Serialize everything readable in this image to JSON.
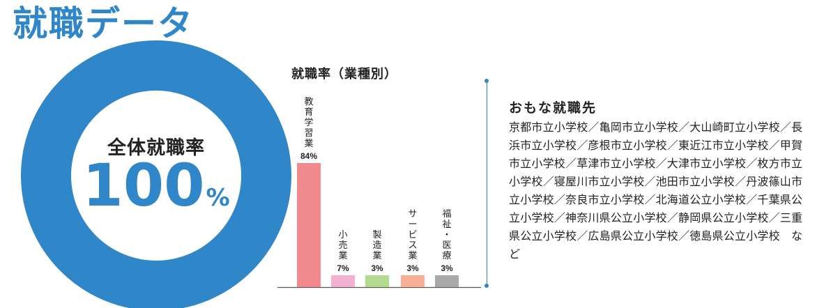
{
  "page_title": "就職データ",
  "overall": {
    "label": "全体就職率",
    "value": "100",
    "unit": "%",
    "fraction": 1.0
  },
  "colors": {
    "accent": "#2f86c8",
    "donut": "#2f86c8"
  },
  "chart_data": {
    "type": "bar",
    "title": "就職率（業種別）",
    "xlabel": "",
    "ylabel": "",
    "ylim": [
      0,
      100
    ],
    "categories": [
      "教育学習業",
      "小売業",
      "製造業",
      "サービス業",
      "福祉・医療"
    ],
    "values": [
      84,
      7,
      3,
      3,
      3
    ],
    "value_labels": [
      "84%",
      "7%",
      "3%",
      "3%",
      "3%"
    ],
    "colors": [
      "#f08a8e",
      "#f3b1d2",
      "#b3db8f",
      "#f9ae96",
      "#a8a9ab"
    ],
    "grid": false
  },
  "employers": {
    "heading": "おもな就職先",
    "text": "京都市立小学校／亀岡市立小学校／大山崎町立小学校／長浜市立小学校／彦根市立小学校／東近江市立小学校／甲賀市立小学校／草津市立小学校／大津市立小学校／枚方市立小学校／寝屋川市立小学校／池田市立小学校／丹波篠山市立小学校／奈良市立小学校／北海道公立小学校／千葉県公立小学校／神奈川県公立小学校／静岡県公立小学校／三重県公立小学校／広島県公立小学校／徳島県公立小学校　など"
  }
}
